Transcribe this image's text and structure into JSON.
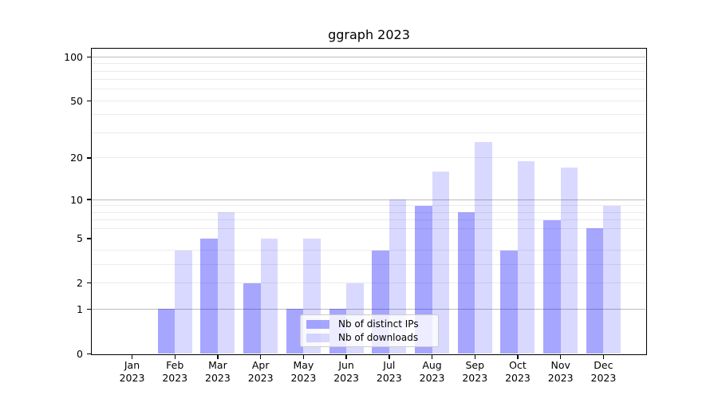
{
  "chart_data": {
    "type": "bar",
    "title": "ggraph 2023",
    "categories": [
      "Jan",
      "Feb",
      "Mar",
      "Apr",
      "May",
      "Jun",
      "Jul",
      "Aug",
      "Sep",
      "Oct",
      "Nov",
      "Dec"
    ],
    "tick_year": "2023",
    "series": [
      {
        "name": "Nb of distinct IPs",
        "color": "#0000ff59",
        "values": [
          0,
          1,
          5,
          2,
          1,
          1,
          4,
          9,
          8,
          4,
          7,
          6
        ]
      },
      {
        "name": "Nb of downloads",
        "color": "#0000ff26",
        "values": [
          0,
          4,
          8,
          5,
          5,
          2,
          10,
          16,
          26,
          19,
          17,
          9
        ]
      }
    ],
    "y_axis": {
      "scale": "log1p",
      "range": [
        0,
        100
      ],
      "ticks": [
        0,
        1,
        2,
        5,
        10,
        20,
        50,
        100
      ],
      "major_gridlines": [
        1,
        10,
        100
      ],
      "minor_gridlines": [
        2,
        3,
        4,
        6,
        7,
        8,
        9,
        20,
        30,
        40,
        50,
        60,
        70,
        80,
        90
      ]
    },
    "grid": {
      "major_color": "#bbbbbb",
      "minor_color": "#ebebeb"
    },
    "legend": {
      "position": "lower center"
    }
  }
}
